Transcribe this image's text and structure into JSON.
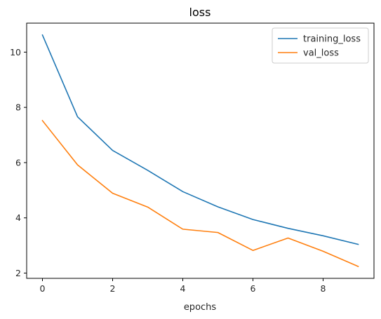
{
  "chart_data": {
    "type": "line",
    "title": "loss",
    "xlabel": "epochs",
    "ylabel": "",
    "x": [
      0,
      1,
      2,
      3,
      4,
      5,
      6,
      7,
      8,
      9
    ],
    "xticks": [
      0,
      2,
      4,
      6,
      8
    ],
    "yticks": [
      2,
      4,
      6,
      8,
      10
    ],
    "xlim": [
      -0.45,
      9.45
    ],
    "ylim": [
      1.81,
      11.05
    ],
    "grid": false,
    "legend_position": "top-right",
    "series": [
      {
        "name": "training_loss",
        "color": "#1f77b4",
        "values": [
          10.62,
          7.66,
          6.44,
          5.72,
          4.95,
          4.4,
          3.94,
          3.62,
          3.35,
          3.04
        ]
      },
      {
        "name": "val_loss",
        "color": "#ff7f0e",
        "values": [
          7.52,
          5.92,
          4.89,
          4.39,
          3.59,
          3.47,
          2.82,
          3.27,
          2.79,
          2.24
        ]
      }
    ]
  }
}
